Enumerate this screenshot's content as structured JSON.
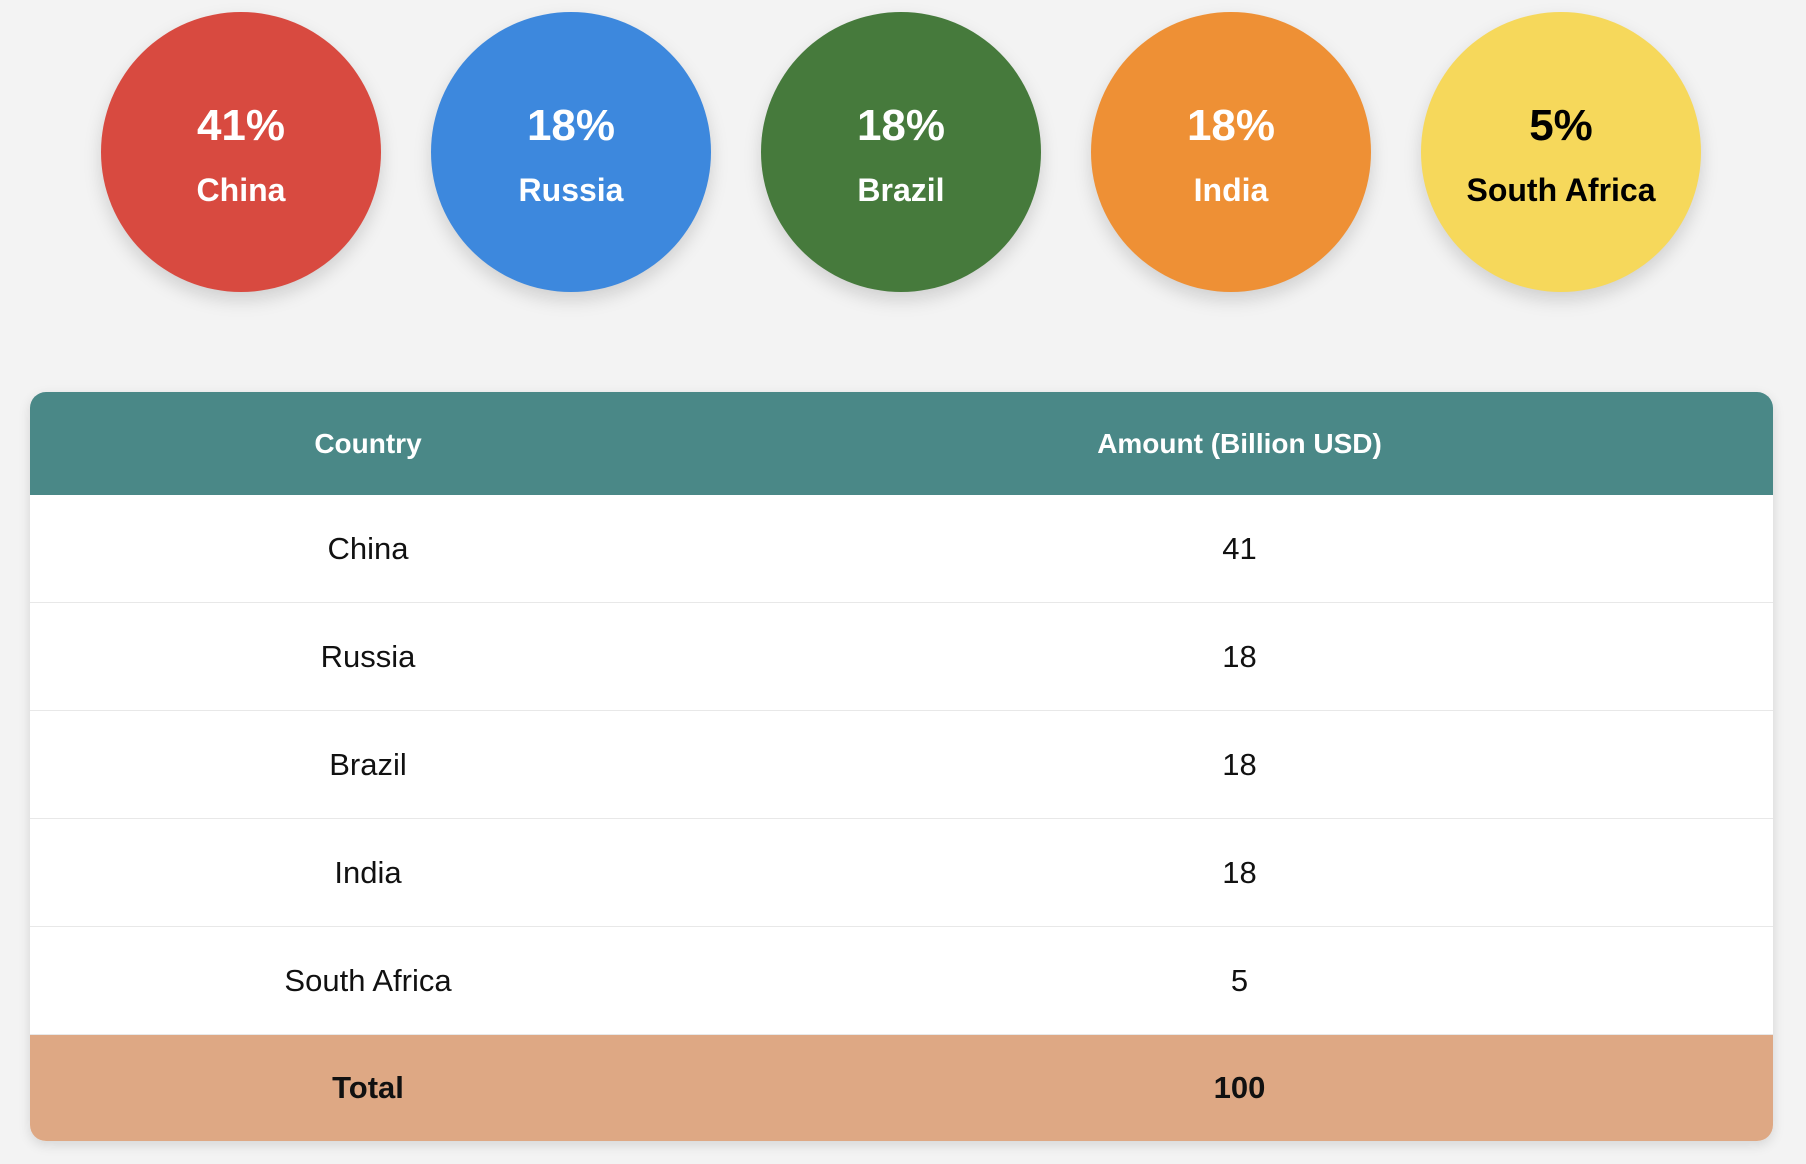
{
  "circles": [
    {
      "percent": "41%",
      "country": "China",
      "color": "#d84a40",
      "text_color": "#ffffff"
    },
    {
      "percent": "18%",
      "country": "Russia",
      "color": "#3d88dd",
      "text_color": "#ffffff"
    },
    {
      "percent": "18%",
      "country": "Brazil",
      "color": "#467a3c",
      "text_color": "#ffffff"
    },
    {
      "percent": "18%",
      "country": "India",
      "color": "#ee9035",
      "text_color": "#ffffff"
    },
    {
      "percent": "5%",
      "country": "South Africa",
      "color": "#f6d85b",
      "text_color": "#000000"
    }
  ],
  "table": {
    "header": [
      "Country",
      "Amount (Billion USD)"
    ],
    "rows": [
      [
        "China",
        41
      ],
      [
        "Russia",
        18
      ],
      [
        "Brazil",
        18
      ],
      [
        "India",
        18
      ],
      [
        "South Africa",
        5
      ]
    ],
    "total": [
      "Total",
      100
    ]
  }
}
